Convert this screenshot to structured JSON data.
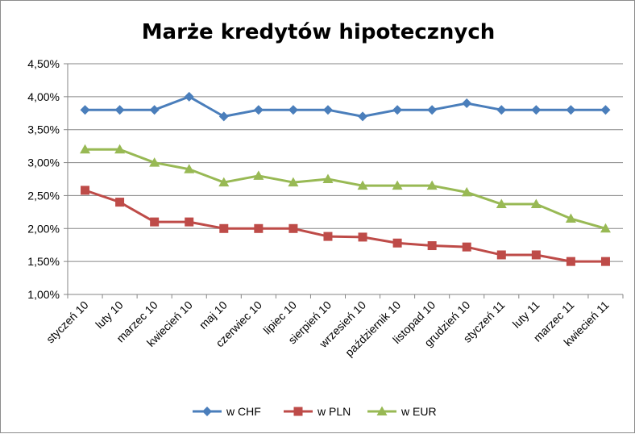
{
  "chart_data": {
    "type": "line",
    "title": "Marże kredytów hipotecznych",
    "xlabel": "",
    "ylabel": "",
    "categories": [
      "styczeń 10",
      "luty 10",
      "marzec 10",
      "kwiecień 10",
      "maj 10",
      "czerwiec 10",
      "lipiec 10",
      "sierpień 10",
      "wrzesień 10",
      "październik 10",
      "listopad 10",
      "grudzień 10",
      "styczeń 11",
      "luty 11",
      "marzec 11",
      "kwiecień 11"
    ],
    "ylim": [
      1.0,
      4.5
    ],
    "yticks": [
      1.0,
      1.5,
      2.0,
      2.5,
      3.0,
      3.5,
      4.0,
      4.5
    ],
    "ytick_labels": [
      "1,00%",
      "1,50%",
      "2,00%",
      "2,50%",
      "3,00%",
      "3,50%",
      "4,00%",
      "4,50%"
    ],
    "grid": "horizontal",
    "legend_position": "bottom",
    "series": [
      {
        "name": "w CHF",
        "color": "#4a7ebb",
        "marker": "diamond",
        "values": [
          3.8,
          3.8,
          3.8,
          4.0,
          3.7,
          3.8,
          3.8,
          3.8,
          3.7,
          3.8,
          3.8,
          3.9,
          3.8,
          3.8,
          3.8,
          3.8
        ]
      },
      {
        "name": "w PLN",
        "color": "#be4b48",
        "marker": "square",
        "values": [
          2.58,
          2.4,
          2.1,
          2.1,
          2.0,
          2.0,
          2.0,
          1.88,
          1.87,
          1.78,
          1.74,
          1.72,
          1.6,
          1.6,
          1.5,
          1.5
        ]
      },
      {
        "name": "w EUR",
        "color": "#98b954",
        "marker": "triangle",
        "values": [
          3.2,
          3.2,
          3.0,
          2.9,
          2.7,
          2.8,
          2.7,
          2.75,
          2.65,
          2.65,
          2.65,
          2.55,
          2.37,
          2.37,
          2.15,
          2.0
        ]
      }
    ]
  }
}
